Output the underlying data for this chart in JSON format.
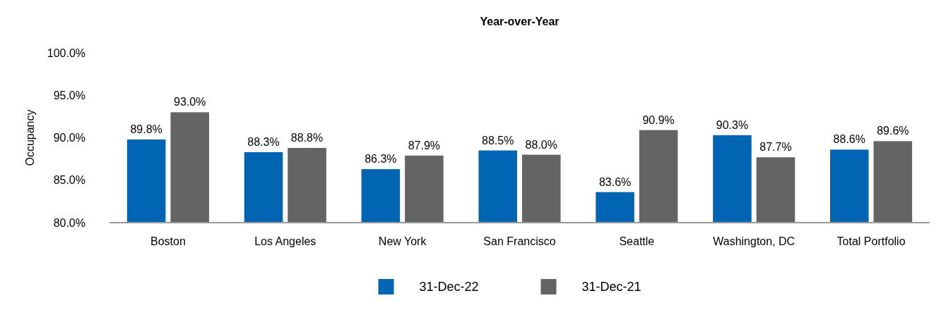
{
  "chart_data": {
    "type": "bar",
    "title": "Year-over-Year",
    "ylabel": "Occupancy",
    "categories": [
      "Boston",
      "Los Angeles",
      "New York",
      "San Francisco",
      "Seattle",
      "Washington, DC",
      "Total Portfolio"
    ],
    "series": [
      {
        "name": "31-Dec-22",
        "color": "#0066b3",
        "values": [
          89.8,
          88.3,
          86.3,
          88.5,
          83.6,
          90.3,
          88.6
        ],
        "value_labels": [
          "89.8%",
          "88.3%",
          "86.3%",
          "88.5%",
          "83.6%",
          "90.3%",
          "88.6%"
        ]
      },
      {
        "name": "31-Dec-21",
        "color": "#646464",
        "values": [
          93.0,
          88.8,
          87.9,
          88.0,
          90.9,
          87.7,
          89.6
        ],
        "value_labels": [
          "93.0%",
          "88.8%",
          "87.9%",
          "88.0%",
          "90.9%",
          "87.7%",
          "89.6%"
        ]
      }
    ],
    "ylim": [
      80,
      100
    ],
    "yticks": [
      {
        "value": 80,
        "label": "80.0%"
      },
      {
        "value": 85,
        "label": "85.0%"
      },
      {
        "value": 90,
        "label": "90.0%"
      },
      {
        "value": 95,
        "label": "95.0%"
      },
      {
        "value": 100,
        "label": "100.0%"
      }
    ],
    "grid": false,
    "legend": "bottom"
  }
}
